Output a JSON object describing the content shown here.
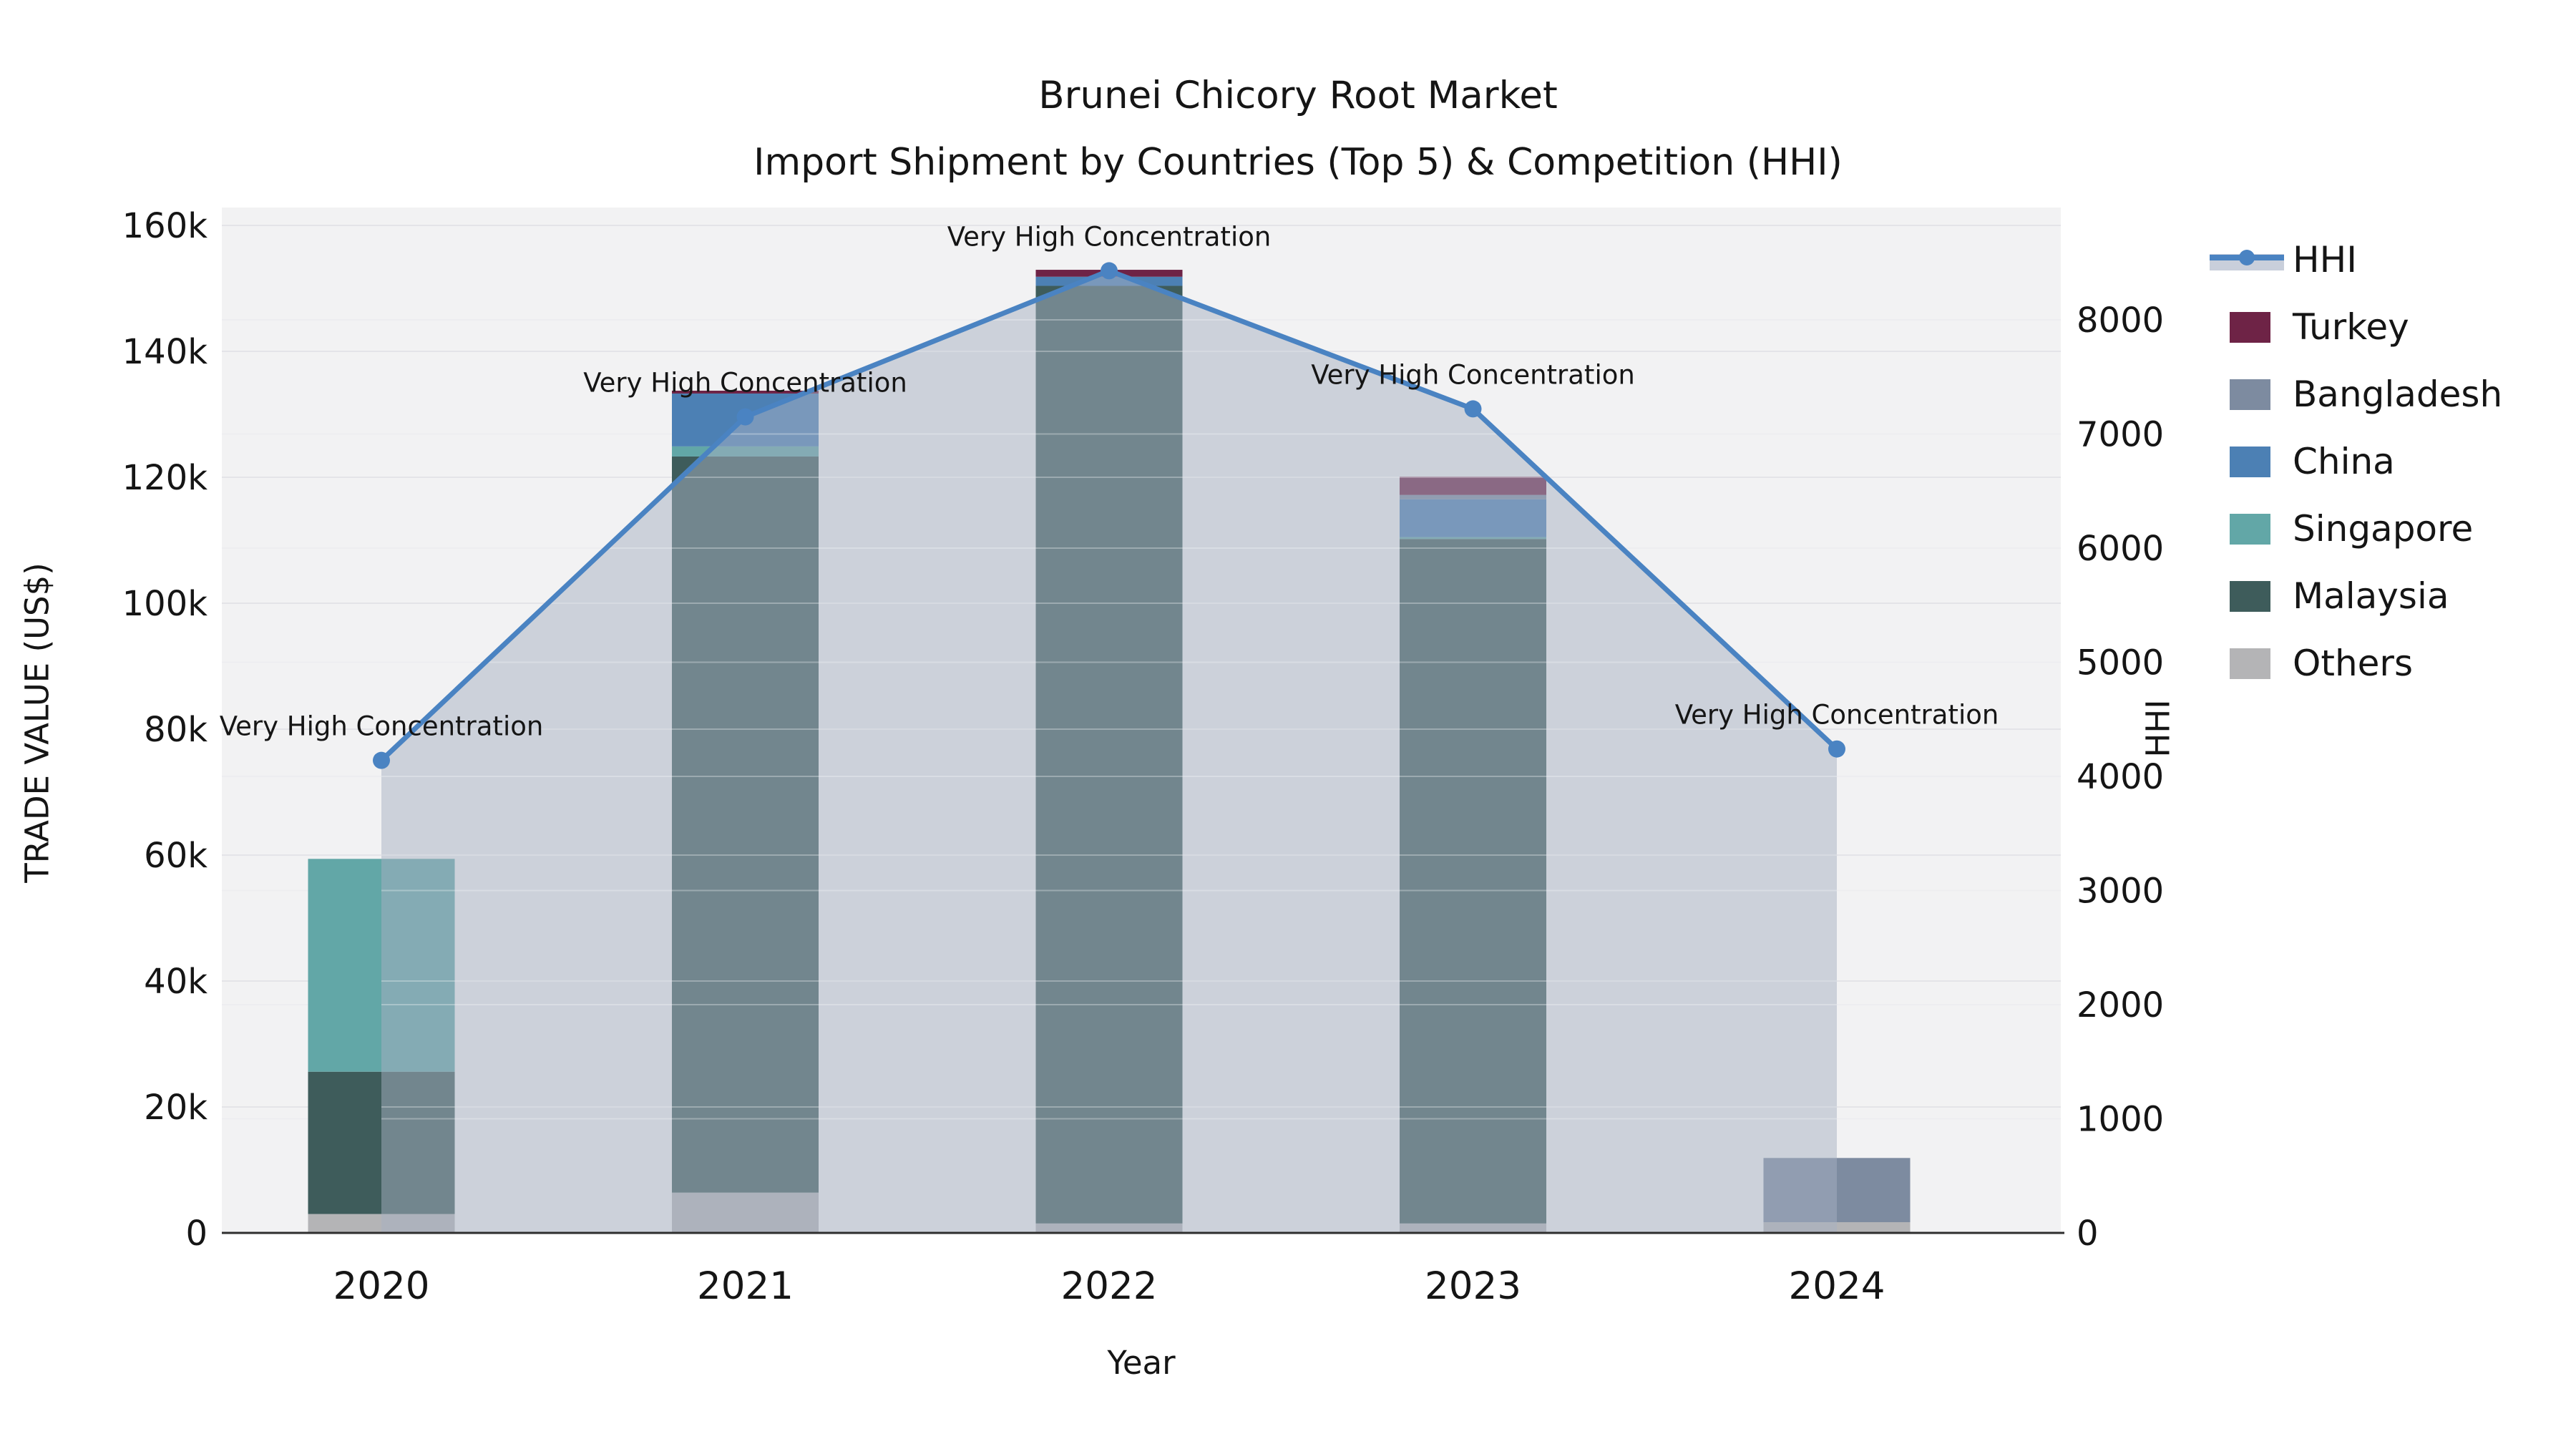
{
  "title": {
    "line1": "Brunei Chicory Root Market",
    "line2": "Import Shipment by Countries (Top 5) & Competition (HHI)"
  },
  "legend": {
    "items": [
      {
        "label": "HHI",
        "type": "line",
        "color": "#4a83c2",
        "band_color": "#c9cfdb"
      },
      {
        "label": "Turkey",
        "type": "patch",
        "color": "#6e2346"
      },
      {
        "label": "Bangladesh",
        "type": "patch",
        "color": "#7d8ba0"
      },
      {
        "label": "China",
        "type": "patch",
        "color": "#4c80b4"
      },
      {
        "label": "Singapore",
        "type": "patch",
        "color": "#62a7a7"
      },
      {
        "label": "Malaysia",
        "type": "patch",
        "color": "#3e5c5b"
      },
      {
        "label": "Others",
        "type": "patch",
        "color": "#b4b4b6"
      }
    ]
  },
  "chart_data": {
    "type": "bar",
    "subtype": "stacked-bars-with-hhi-line-and-area",
    "title": "Brunei Chicory Root Market",
    "subtitle": "Import Shipment by Countries (Top 5) & Competition (HHI)",
    "categories": [
      "2020",
      "2021",
      "2022",
      "2023",
      "2024"
    ],
    "series": [
      {
        "name": "Others",
        "color": "#b4b4b6",
        "values": [
          3000,
          6400,
          1500,
          1500,
          1700
        ]
      },
      {
        "name": "Malaysia",
        "color": "#3e5c5b",
        "values": [
          22600,
          116900,
          148900,
          108700,
          0
        ]
      },
      {
        "name": "Singapore",
        "color": "#62a7a7",
        "values": [
          33800,
          1600,
          0,
          300,
          0
        ]
      },
      {
        "name": "China",
        "color": "#4c80b4",
        "values": [
          0,
          8400,
          1450,
          6000,
          0
        ]
      },
      {
        "name": "Bangladesh",
        "color": "#7d8ba0",
        "values": [
          0,
          0,
          0,
          700,
          10200
        ]
      },
      {
        "name": "Turkey",
        "color": "#6e2346",
        "values": [
          0,
          450,
          1100,
          2900,
          0
        ]
      }
    ],
    "bar_totals": [
      59400,
      133750,
      152950,
      120100,
      11900
    ],
    "line_series": {
      "name": "HHI",
      "color": "#4a83c2",
      "area_color": "rgba(166,176,193,0.5)",
      "values": [
        4140,
        7150,
        8430,
        7220,
        4240
      ]
    },
    "annotations": [
      "Very High Concentration",
      "Very High Concentration",
      "Very High Concentration",
      "Very High Concentration",
      "Very High Concentration"
    ],
    "left_axis": {
      "label": "TRADE VALUE (US$)",
      "ticks": [
        "0",
        "20k",
        "40k",
        "60k",
        "80k",
        "100k",
        "120k",
        "140k",
        "160k"
      ],
      "tick_values": [
        0,
        20000,
        40000,
        60000,
        80000,
        100000,
        120000,
        140000,
        160000
      ],
      "max": 160000
    },
    "right_axis": {
      "label": "HHI",
      "ticks": [
        "0",
        "1000",
        "2000",
        "3000",
        "4000",
        "5000",
        "6000",
        "7000",
        "8000"
      ],
      "tick_values": [
        0,
        1000,
        2000,
        3000,
        4000,
        5000,
        6000,
        7000,
        8000
      ],
      "max_tick": 8000
    },
    "x_axis": {
      "label": "Year"
    },
    "layout_hints": {
      "grid": true,
      "legend_position": "right-outside",
      "plot_bg": "#f2f2f3",
      "grid_color_left": "#e4e4e8",
      "grid_color_right": "#ededf0",
      "axis_line_color": "#2e2e2e",
      "text_color": "#151515"
    }
  }
}
